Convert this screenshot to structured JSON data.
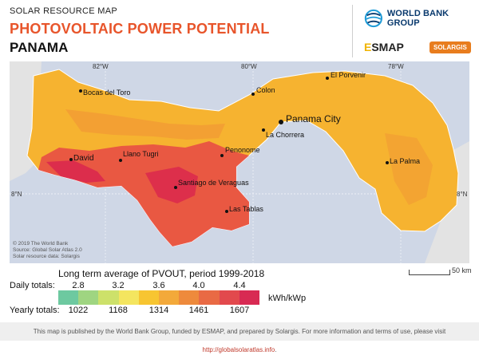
{
  "header": {
    "subtitle": "SOLAR RESOURCE MAP",
    "title": "PHOTOVOLTAIC POWER POTENTIAL",
    "country": "PANAMA"
  },
  "logos": {
    "world_bank": "WORLD BANK GROUP",
    "esmap_mark": "E",
    "esmap_rest": "SMAP",
    "solargis": "SOLARGIS"
  },
  "map": {
    "lon_labels": [
      "82°W",
      "80°W",
      "78°W"
    ],
    "lat_labels": [
      "8°N",
      "8°N"
    ],
    "cities": [
      {
        "name": "El Porvenir"
      },
      {
        "name": "Bocas del Toro"
      },
      {
        "name": "Colon"
      },
      {
        "name": "Panama City"
      },
      {
        "name": "La Chorrera"
      },
      {
        "name": "David"
      },
      {
        "name": "Llano Tugri"
      },
      {
        "name": "Penonome"
      },
      {
        "name": "La Palma"
      },
      {
        "name": "Santiago de Veraguas"
      },
      {
        "name": "Las Tablas"
      }
    ],
    "credits": [
      "© 2019 The World Bank",
      "Source: Global Solar Atlas 2.0",
      "Solar resource data: Solargis"
    ],
    "scale_label": "50 km",
    "colors": {
      "sea": "#cfd7e6",
      "neighbor": "#e3e3e3",
      "low": "#f7c531",
      "mid": "#f19a34",
      "high": "#e84e45",
      "highest": "#d9264e"
    }
  },
  "legend": {
    "title": "Long term average of PVOUT, period 1999-2018",
    "daily_label": "Daily totals:",
    "yearly_label": "Yearly totals:",
    "daily_ticks": [
      "2.8",
      "3.2",
      "3.6",
      "4.0",
      "4.4"
    ],
    "yearly_ticks": [
      "1022",
      "1168",
      "1314",
      "1461",
      "1607"
    ],
    "unit": "kWh/kWp",
    "ramp_colors": [
      "#6dc9a0",
      "#9fd581",
      "#cde16a",
      "#f4e55f",
      "#f7c531",
      "#f3a93a",
      "#ee8a3c",
      "#e96a44",
      "#e2494d",
      "#d82a53"
    ]
  },
  "footer": {
    "text": "This map is published by the World Bank Group, funded by ESMAP, and prepared by Solargis. For more information and terms of use, please visit",
    "link": "http://globalsolaratlas.info",
    "tail": "."
  }
}
